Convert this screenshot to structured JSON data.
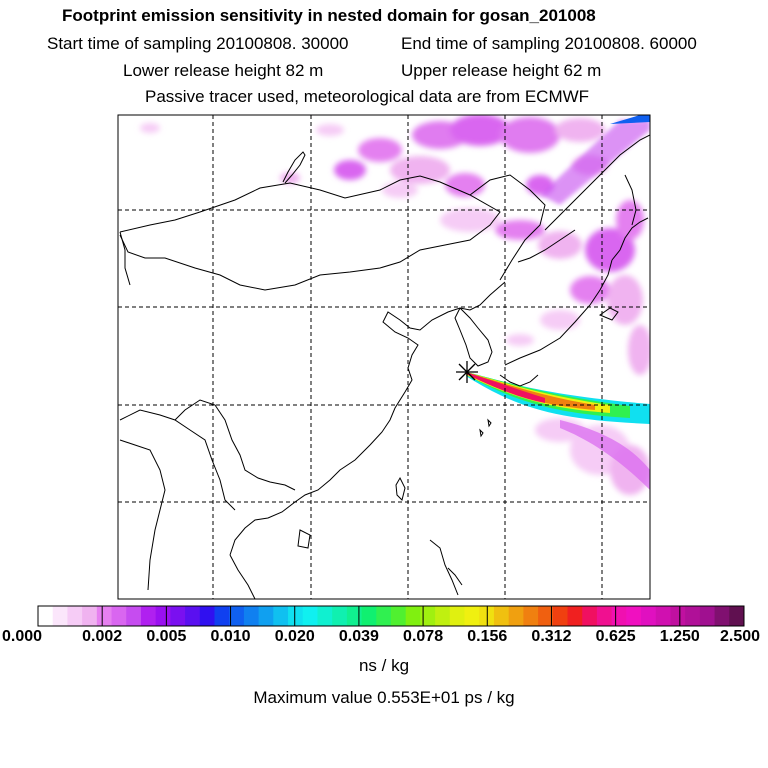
{
  "header": {
    "title": "Footprint emission sensitivity in nested domain for gosan_201008",
    "start_time": "Start time of sampling 20100808. 30000",
    "end_time": "End time of sampling 20100808. 60000",
    "lower_release": "Lower release height   82 m",
    "upper_release": "Upper release height   62 m",
    "tracer_info": "Passive tracer used, meteorological data are from ECMWF"
  },
  "colorbar": {
    "tick_labels": [
      "0.000",
      "0.002",
      "0.005",
      "0.010",
      "0.020",
      "0.039",
      "0.078",
      "0.156",
      "0.312",
      "0.625",
      "1.250",
      "2.500"
    ],
    "colors": [
      "#ffffff",
      "#fbe6fb",
      "#f6ccf6",
      "#f0b3f0",
      "#e680f0",
      "#d966f0",
      "#c64cf0",
      "#b020f0",
      "#9a10f0",
      "#7a10f0",
      "#5a10f0",
      "#3010f0",
      "#1040f0",
      "#1060f0",
      "#1080f0",
      "#10a0f0",
      "#10c0f0",
      "#10e0f0",
      "#10f0f0",
      "#10f0d0",
      "#10f0b0",
      "#10f090",
      "#10f070",
      "#30f050",
      "#50f030",
      "#80f010",
      "#a0f010",
      "#c0f010",
      "#e0f010",
      "#f0f010",
      "#f0e010",
      "#f0c010",
      "#f0a010",
      "#f08010",
      "#f06010",
      "#f04010",
      "#f02020",
      "#f01060",
      "#f01090",
      "#f010b0",
      "#f010c0",
      "#e010c0",
      "#d010b0",
      "#c010a0",
      "#b01098",
      "#a01090",
      "#801070",
      "#601050"
    ],
    "units": "ns / kg"
  },
  "max_value": "Maximum value  0.553E+01 ps / kg",
  "map": {
    "receptor_marker": "star-marker",
    "plume_colors": [
      "#f0f010",
      "#f0c010",
      "#f08010",
      "#f04010",
      "#f01060",
      "#10f0f0",
      "#10e0f0"
    ]
  }
}
